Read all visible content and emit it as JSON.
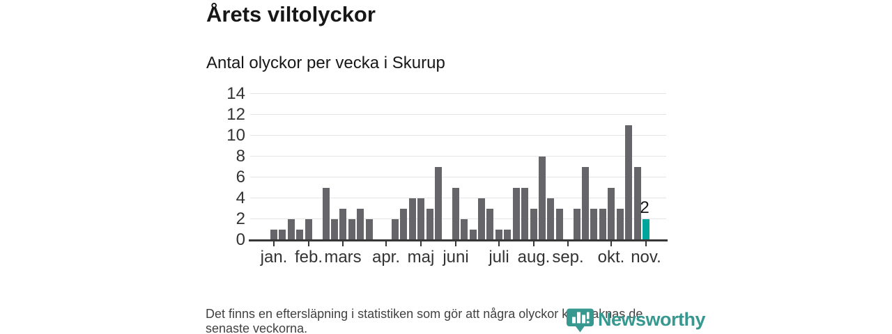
{
  "title": "Årets viltolyckor",
  "subtitle": "Antal olyckor per vecka i Skurup",
  "footer": {
    "note_line1": "Det finns en eftersläpning i statistiken som gör att några olyckor kan saknas de",
    "note_line2": "senaste veckorna.",
    "brand": "Newsworthy"
  },
  "colors": {
    "bar": "#66666a",
    "highlight": "#00a69b",
    "axis": "#363636",
    "gridline": "#e4e4e4",
    "title_text": "#171717",
    "label_text": "#333333",
    "note_text": "#414141",
    "brand_teal": "#37988f"
  },
  "chart_data": {
    "type": "bar",
    "title": "Årets viltolyckor",
    "subtitle": "Antal olyckor per vecka i Skurup",
    "ylabel": "Antal olyckor per vecka",
    "x_unit": "vecka",
    "values": [
      1,
      1,
      2,
      1,
      2,
      0,
      5,
      2,
      3,
      2,
      3,
      2,
      0,
      0,
      2,
      3,
      4,
      4,
      3,
      7,
      0,
      5,
      2,
      1,
      4,
      3,
      1,
      1,
      5,
      5,
      3,
      8,
      4,
      3,
      0,
      3,
      7,
      3,
      3,
      5,
      3,
      11,
      7,
      2
    ],
    "highlight_last": true,
    "last_value_label": "2",
    "ylim": [
      0,
      14
    ],
    "yticks": [
      0,
      2,
      4,
      6,
      8,
      10,
      12,
      14
    ],
    "month_ticks": [
      {
        "label": "jan.",
        "index": 0
      },
      {
        "label": "feb.",
        "index": 4
      },
      {
        "label": "mars",
        "index": 8
      },
      {
        "label": "apr.",
        "index": 13
      },
      {
        "label": "maj",
        "index": 17
      },
      {
        "label": "juni",
        "index": 21
      },
      {
        "label": "juli",
        "index": 26
      },
      {
        "label": "aug.",
        "index": 30
      },
      {
        "label": "sep.",
        "index": 34
      },
      {
        "label": "okt.",
        "index": 39
      },
      {
        "label": "nov.",
        "index": 43
      }
    ],
    "grid": true,
    "legend": false
  }
}
